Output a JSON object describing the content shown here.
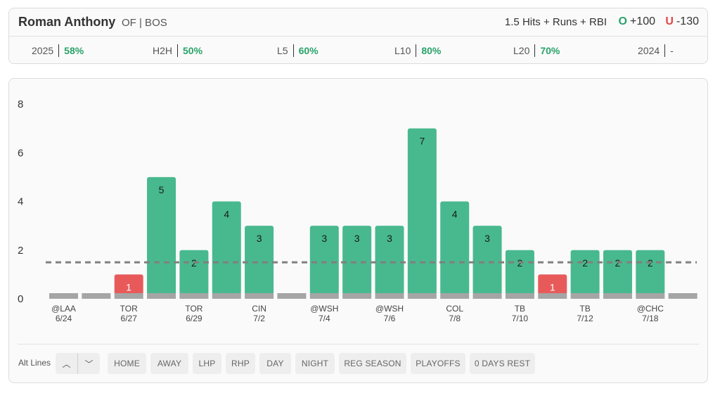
{
  "header": {
    "player_name": "Roman Anthony",
    "player_meta": "OF | BOS",
    "prop_line": "1.5 Hits + Runs + RBI",
    "over_mark": "O",
    "over_odds": "+100",
    "under_mark": "U",
    "under_odds": "-130"
  },
  "stats": [
    {
      "label": "2025",
      "value": "58%"
    },
    {
      "label": "H2H",
      "value": "50%"
    },
    {
      "label": "L5",
      "value": "60%"
    },
    {
      "label": "L10",
      "value": "80%"
    },
    {
      "label": "L20",
      "value": "70%"
    },
    {
      "label": "2024",
      "value": "-"
    }
  ],
  "colors": {
    "over": "#48b98e",
    "under": "#e85a5a",
    "base": "#a5a5a5",
    "line": "#808080",
    "accent_green": "#2aa26a"
  },
  "chart_data": {
    "type": "bar",
    "threshold": 1.5,
    "ylim": [
      0,
      8
    ],
    "yticks": [
      0,
      2,
      4,
      6,
      8
    ],
    "grid": false,
    "games": [
      {
        "opp": "@LAA",
        "date": "6/24",
        "value": 0
      },
      {
        "opp": "",
        "date": "",
        "value": 0
      },
      {
        "opp": "TOR",
        "date": "6/27",
        "value": 1
      },
      {
        "opp": "",
        "date": "",
        "value": 5
      },
      {
        "opp": "TOR",
        "date": "6/29",
        "value": 2
      },
      {
        "opp": "",
        "date": "",
        "value": 4
      },
      {
        "opp": "CIN",
        "date": "7/2",
        "value": 3
      },
      {
        "opp": "",
        "date": "",
        "value": 0
      },
      {
        "opp": "@WSH",
        "date": "7/4",
        "value": 3
      },
      {
        "opp": "",
        "date": "",
        "value": 3
      },
      {
        "opp": "@WSH",
        "date": "7/6",
        "value": 3
      },
      {
        "opp": "",
        "date": "",
        "value": 7
      },
      {
        "opp": "COL",
        "date": "7/8",
        "value": 4
      },
      {
        "opp": "",
        "date": "",
        "value": 3
      },
      {
        "opp": "TB",
        "date": "7/10",
        "value": 2
      },
      {
        "opp": "",
        "date": "",
        "value": 1
      },
      {
        "opp": "TB",
        "date": "7/12",
        "value": 2
      },
      {
        "opp": "",
        "date": "",
        "value": 2
      },
      {
        "opp": "@CHC",
        "date": "7/18",
        "value": 2
      },
      {
        "opp": "",
        "date": "",
        "value": 0
      }
    ]
  },
  "toolbar": {
    "alt_lines_label": "Alt Lines",
    "up_icon": "chevron-up-icon",
    "down_icon": "chevron-down-icon",
    "up_glyph": "︿",
    "down_glyph": "﹀",
    "filters": [
      "HOME",
      "AWAY",
      "LHP",
      "RHP",
      "DAY",
      "NIGHT",
      "REG SEASON",
      "PLAYOFFS",
      "0 DAYS REST"
    ]
  }
}
